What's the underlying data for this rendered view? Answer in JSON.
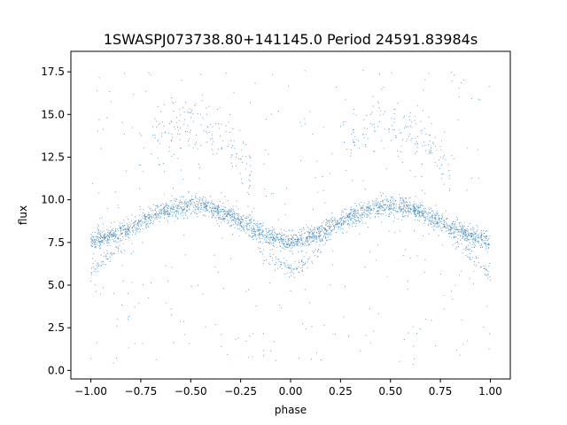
{
  "chart_data": {
    "type": "scatter",
    "title": "1SWASPJ073738.80+141145.0 Period 24591.83984s",
    "xlabel": "phase",
    "ylabel": "flux",
    "xlim": [
      -1.1,
      1.1
    ],
    "ylim": [
      -0.5,
      18.7
    ],
    "xticks": [
      -1.0,
      -0.75,
      -0.5,
      -0.25,
      0.0,
      0.25,
      0.5,
      0.75,
      1.0
    ],
    "xtick_labels": [
      "−1.00",
      "−0.75",
      "−0.50",
      "−0.25",
      "0.00",
      "0.25",
      "0.50",
      "0.75",
      "1.00"
    ],
    "yticks": [
      0.0,
      2.5,
      5.0,
      7.5,
      10.0,
      12.5,
      15.0,
      17.5
    ],
    "ytick_labels": [
      "0.0",
      "2.5",
      "5.0",
      "7.5",
      "10.0",
      "12.5",
      "15.0",
      "17.5"
    ],
    "grid": false,
    "marker_color": "#1f77b4",
    "series": [
      {
        "x": [
          -1.0,
          -0.9,
          -0.8,
          -0.7,
          -0.6,
          -0.5,
          -0.4,
          -0.3,
          -0.2,
          -0.1,
          0.0,
          0.1,
          0.2,
          0.3,
          0.4,
          0.5,
          0.6,
          0.7,
          0.8,
          0.9,
          1.0
        ],
        "y": [
          7.5,
          7.9,
          8.4,
          9.0,
          9.5,
          9.7,
          9.5,
          9.0,
          8.4,
          7.8,
          7.5,
          7.8,
          8.4,
          9.0,
          9.5,
          9.7,
          9.5,
          9.0,
          8.4,
          7.9,
          7.5
        ]
      },
      {
        "x": [
          -1.0,
          -0.9,
          -0.8,
          -0.2,
          -0.1,
          0.0,
          0.1,
          0.2,
          0.8,
          0.9,
          1.0
        ],
        "y": [
          5.8,
          6.8,
          8.0,
          8.0,
          6.6,
          5.8,
          6.6,
          8.0,
          8.0,
          6.8,
          5.8
        ]
      },
      {
        "x": [
          -0.7,
          -0.6,
          -0.5,
          -0.4,
          -0.3,
          -0.2,
          0.3,
          0.4,
          0.5,
          0.6,
          0.7,
          0.8
        ],
        "y": [
          13.0,
          14.2,
          14.6,
          14.0,
          13.2,
          11.5,
          13.0,
          14.3,
          14.6,
          14.0,
          13.2,
          11.5
        ]
      }
    ]
  }
}
